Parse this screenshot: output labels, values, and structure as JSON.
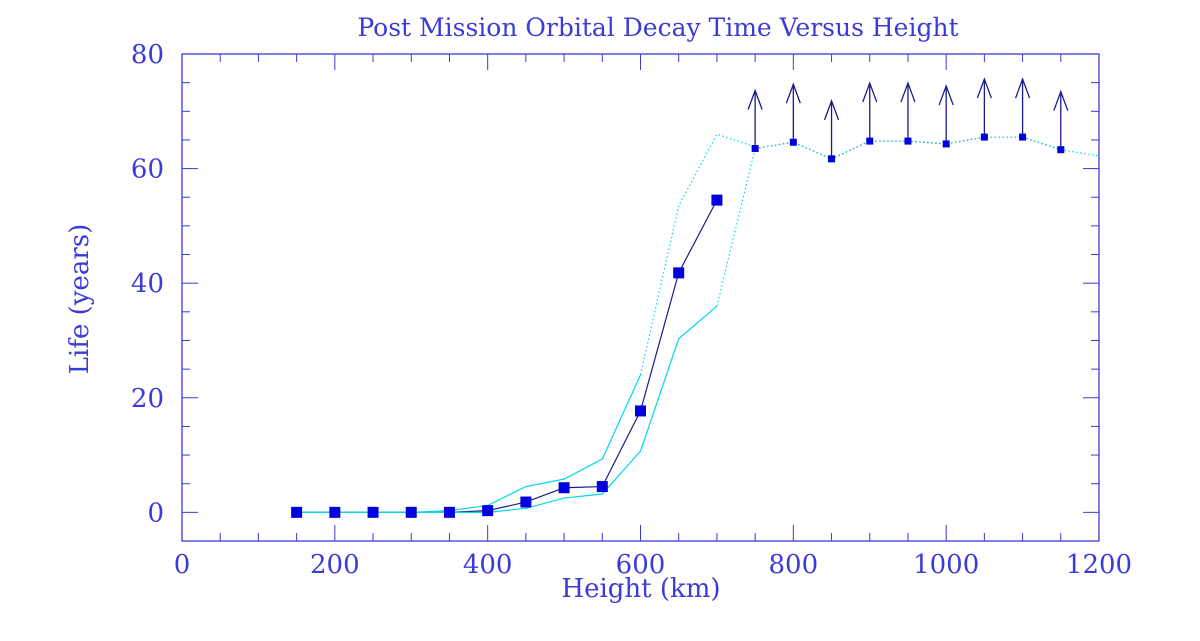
{
  "chart_data": {
    "type": "line",
    "title": "Post Mission Orbital Decay Time Versus Height",
    "xlabel": "Height (km)",
    "ylabel": "Life (years)",
    "xlim": [
      0,
      1200
    ],
    "ylim": [
      -5,
      80
    ],
    "xticks": [
      0,
      200,
      400,
      600,
      800,
      1000,
      1200
    ],
    "yticks": [
      0,
      20,
      40,
      60,
      80
    ],
    "x_minor_step": 50,
    "y_minor_step": 5,
    "grid": false,
    "legend": "none",
    "colors": {
      "axes": "#3b3bd6",
      "text": "#3b3bd6",
      "main_line": "#1a1a8c",
      "markers": "#0000dd",
      "bounds": "#00d8e8",
      "arrows": "#1a1a8c"
    },
    "series": [
      {
        "role": "nominal",
        "style": "solid",
        "marker": "square",
        "x": [
          150,
          200,
          250,
          300,
          350,
          400,
          450,
          500,
          550,
          600,
          650,
          700
        ],
        "y": [
          0,
          0,
          0,
          0,
          0,
          0.3,
          1.8,
          4.3,
          4.5,
          17.7,
          41.8,
          54.5
        ]
      },
      {
        "role": "nominal-lower-limit",
        "style": "dotted",
        "marker": "small-square",
        "arrows": "up",
        "x": [
          750,
          800,
          850,
          900,
          950,
          1000,
          1050,
          1100,
          1150
        ],
        "y": [
          63.5,
          64.6,
          61.7,
          64.8,
          64.8,
          64.3,
          65.5,
          65.5,
          63.3
        ]
      },
      {
        "role": "upper-bound",
        "style": "solid",
        "x": [
          150,
          200,
          250,
          300,
          350,
          400,
          450,
          500,
          550,
          600
        ],
        "y": [
          0,
          0,
          0,
          0,
          0.3,
          1.2,
          4.5,
          5.8,
          9.3,
          24
        ]
      },
      {
        "role": "upper-bound",
        "style": "dotted",
        "x": [
          600,
          650,
          700,
          750
        ],
        "y": [
          24,
          53.5,
          66,
          63.8
        ]
      },
      {
        "role": "lower-bound",
        "style": "solid",
        "x": [
          150,
          200,
          250,
          300,
          350,
          400,
          450,
          500,
          550,
          600,
          650,
          700
        ],
        "y": [
          0,
          0,
          0,
          0,
          0,
          0,
          0.7,
          2.5,
          3.2,
          10.7,
          30.3,
          36
        ]
      },
      {
        "role": "lower-bound",
        "style": "dotted",
        "x": [
          700,
          750
        ],
        "y": [
          36,
          63.5
        ]
      },
      {
        "role": "continuation",
        "style": "dotted",
        "x": [
          750,
          800,
          850,
          900,
          950,
          1000,
          1050,
          1100,
          1150,
          1200
        ],
        "y": [
          63.5,
          64.6,
          61.7,
          64.8,
          64.8,
          64.3,
          65.5,
          65.5,
          63.3,
          62.2
        ]
      }
    ]
  }
}
